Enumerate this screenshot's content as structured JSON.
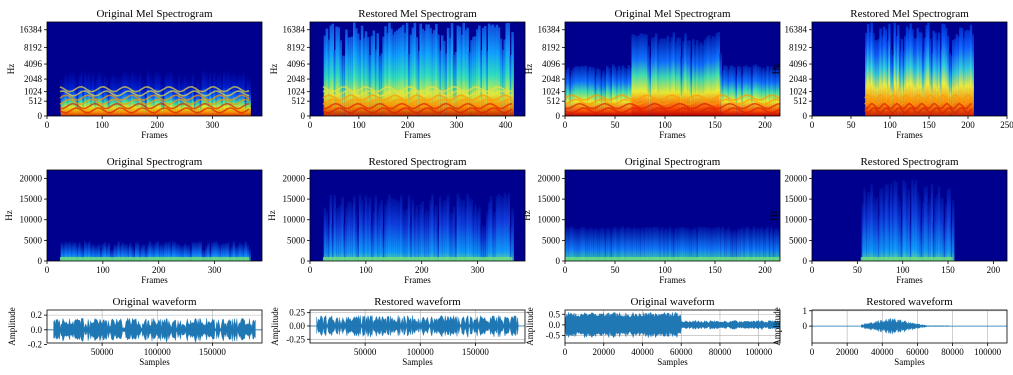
{
  "colors": {
    "spec_bg": "#00008f",
    "waveform": "#1f77b4",
    "grid": "#b0b0b0"
  },
  "chart_data": [
    {
      "type": "heatmap",
      "kind": "mel",
      "variant": "orig1",
      "title": "Original Mel Spectrogram",
      "xlabel": "Frames",
      "ylabel": "Hz",
      "xlim": [
        0,
        390
      ],
      "xticks": [
        0,
        100,
        200,
        300
      ],
      "yticks": [
        0,
        512,
        1024,
        2048,
        4096,
        8192,
        16384
      ],
      "yscale": "mel"
    },
    {
      "type": "heatmap",
      "kind": "mel",
      "variant": "rest1",
      "title": "Restored Mel Spectrogram",
      "xlabel": "Frames",
      "ylabel": "Hz",
      "xlim": [
        0,
        440
      ],
      "xticks": [
        0,
        100,
        200,
        300,
        400
      ],
      "yticks": [
        0,
        512,
        1024,
        2048,
        4096,
        8192,
        16384
      ],
      "yscale": "mel"
    },
    {
      "type": "heatmap",
      "kind": "mel",
      "variant": "orig2",
      "title": "Original Mel Spectrogram",
      "xlabel": "Frames",
      "ylabel": "Hz",
      "xlim": [
        0,
        215
      ],
      "xticks": [
        0,
        50,
        100,
        150,
        200
      ],
      "yticks": [
        0,
        512,
        1024,
        2048,
        4096,
        8192,
        16384
      ],
      "yscale": "mel"
    },
    {
      "type": "heatmap",
      "kind": "mel",
      "variant": "rest2",
      "title": "Restored Mel Spectrogram",
      "xlabel": "Frames",
      "ylabel": "Hz",
      "xlim": [
        0,
        250
      ],
      "xticks": [
        0,
        50,
        100,
        150,
        200,
        250
      ],
      "yticks": [
        0,
        512,
        1024,
        2048,
        4096,
        8192,
        16384
      ],
      "yscale": "mel"
    },
    {
      "type": "heatmap",
      "kind": "linear",
      "variant": "orig1",
      "title": "Original Spectrogram",
      "xlabel": "Frames",
      "ylabel": "Hz",
      "xlim": [
        0,
        385
      ],
      "xticks": [
        0,
        100,
        200,
        300
      ],
      "ylim": [
        0,
        22050
      ],
      "yticks": [
        0,
        5000,
        10000,
        15000,
        20000
      ]
    },
    {
      "type": "heatmap",
      "kind": "linear",
      "variant": "rest1",
      "title": "Restored Spectrogram",
      "xlabel": "Frames",
      "ylabel": "Hz",
      "xlim": [
        0,
        385
      ],
      "xticks": [
        0,
        100,
        200,
        300
      ],
      "ylim": [
        0,
        22050
      ],
      "yticks": [
        0,
        5000,
        10000,
        15000,
        20000
      ]
    },
    {
      "type": "heatmap",
      "kind": "linear",
      "variant": "orig2",
      "title": "Original Spectrogram",
      "xlabel": "Frames",
      "ylabel": "Hz",
      "xlim": [
        0,
        215
      ],
      "xticks": [
        0,
        50,
        100,
        150,
        200
      ],
      "ylim": [
        0,
        22050
      ],
      "yticks": [
        0,
        5000,
        10000,
        15000,
        20000
      ]
    },
    {
      "type": "heatmap",
      "kind": "linear",
      "variant": "rest2",
      "title": "Restored Spectrogram",
      "xlabel": "Frames",
      "ylabel": "Hz",
      "xlim": [
        0,
        215
      ],
      "xticks": [
        0,
        50,
        100,
        150,
        200
      ],
      "ylim": [
        0,
        22050
      ],
      "yticks": [
        0,
        5000,
        10000,
        15000,
        20000
      ]
    },
    {
      "type": "line",
      "kind": "wave",
      "variant": "orig1",
      "title": "Original waveform",
      "xlabel": "Samples",
      "ylabel": "Amplitude",
      "xlim": [
        0,
        195000
      ],
      "xticks": [
        50000,
        100000,
        150000
      ],
      "ylim": [
        -0.18,
        0.27
      ],
      "yticks": [
        -0.2,
        0.0,
        0.2
      ],
      "grid": true,
      "signal_range": [
        6000,
        189000
      ],
      "peak": 0.16
    },
    {
      "type": "line",
      "kind": "wave",
      "variant": "rest1",
      "title": "Restored waveform",
      "xlabel": "Samples",
      "ylabel": "Amplitude",
      "xlim": [
        0,
        195000
      ],
      "xticks": [
        50000,
        100000,
        150000
      ],
      "ylim": [
        -0.32,
        0.3
      ],
      "yticks": [
        -0.25,
        0.0,
        0.25
      ],
      "grid": true,
      "signal_range": [
        6000,
        189000
      ],
      "peak": 0.2
    },
    {
      "type": "line",
      "kind": "wave",
      "variant": "orig2",
      "title": "Original waveform",
      "xlabel": "Samples",
      "ylabel": "Amplitude",
      "xlim": [
        0,
        111000
      ],
      "xticks": [
        0,
        20000,
        40000,
        60000,
        80000,
        100000
      ],
      "ylim": [
        -0.85,
        0.7
      ],
      "yticks": [
        -0.5,
        0.0,
        0.5
      ],
      "grid": true,
      "signal_range": [
        0,
        111000
      ],
      "peak": 0.6
    },
    {
      "type": "line",
      "kind": "wave",
      "variant": "rest2",
      "title": "Restored waveform",
      "xlabel": "Samples",
      "ylabel": "Amplitude",
      "xlim": [
        0,
        111000
      ],
      "xticks": [
        0,
        20000,
        40000,
        60000,
        80000,
        100000
      ],
      "ylim": [
        -1.1,
        1.05
      ],
      "yticks": [
        0,
        1
      ],
      "grid": true,
      "signal_range": [
        28000,
        78000
      ],
      "peak": 0.55
    }
  ]
}
